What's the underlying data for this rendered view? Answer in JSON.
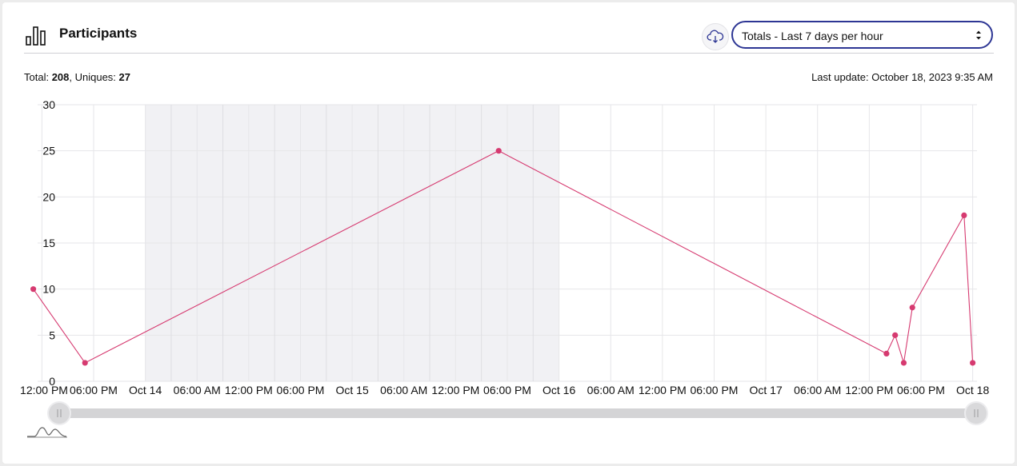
{
  "header": {
    "title": "Participants",
    "select_value": "Totals - Last 7 days per hour",
    "icons": {
      "title": "bar-chart-icon",
      "download": "cloud-download-icon"
    }
  },
  "summary": {
    "total_label": "Total: ",
    "total_value": "208",
    "uniques_label": ", Uniques: ",
    "uniques_value": "27"
  },
  "last_update": "Last update: October 18, 2023 9:35 AM",
  "colors": {
    "series": "#d63a70",
    "weekend_band": "#f1f1f4",
    "accent": "#2d3694",
    "grid": "#e6e6e9",
    "slider": "#d4d4d6"
  },
  "chart_data": {
    "type": "line",
    "x_axis": "time",
    "x_range": [
      "2023-10-13T11:30",
      "2023-10-18T00:30"
    ],
    "ylim": [
      0,
      30
    ],
    "yticks": [
      0,
      5,
      10,
      15,
      20,
      25,
      30
    ],
    "xticks": [
      {
        "t": "2023-10-13T12:00",
        "label": "12:00 PM"
      },
      {
        "t": "2023-10-13T18:00",
        "label": "06:00 PM"
      },
      {
        "t": "2023-10-14T00:00",
        "label": "Oct 14"
      },
      {
        "t": "2023-10-14T06:00",
        "label": "06:00 AM"
      },
      {
        "t": "2023-10-14T12:00",
        "label": "12:00 PM"
      },
      {
        "t": "2023-10-14T18:00",
        "label": "06:00 PM"
      },
      {
        "t": "2023-10-15T00:00",
        "label": "Oct 15"
      },
      {
        "t": "2023-10-15T06:00",
        "label": "06:00 AM"
      },
      {
        "t": "2023-10-15T12:00",
        "label": "12:00 PM"
      },
      {
        "t": "2023-10-15T18:00",
        "label": "06:00 PM"
      },
      {
        "t": "2023-10-16T00:00",
        "label": "Oct 16"
      },
      {
        "t": "2023-10-16T06:00",
        "label": "06:00 AM"
      },
      {
        "t": "2023-10-16T12:00",
        "label": "12:00 PM"
      },
      {
        "t": "2023-10-16T18:00",
        "label": "06:00 PM"
      },
      {
        "t": "2023-10-17T00:00",
        "label": "Oct 17"
      },
      {
        "t": "2023-10-17T06:00",
        "label": "06:00 AM"
      },
      {
        "t": "2023-10-17T12:00",
        "label": "12:00 PM"
      },
      {
        "t": "2023-10-17T18:00",
        "label": "06:00 PM"
      },
      {
        "t": "2023-10-18T00:00",
        "label": "Oct 18"
      }
    ],
    "minor_gridlines": [
      "2023-10-14T03:00",
      "2023-10-14T09:00",
      "2023-10-14T15:00",
      "2023-10-14T21:00",
      "2023-10-15T03:00",
      "2023-10-15T09:00",
      "2023-10-15T15:00",
      "2023-10-15T21:00"
    ],
    "weekend_band": [
      "2023-10-14T00:00",
      "2023-10-16T00:00"
    ],
    "series": [
      {
        "points": [
          {
            "t": "2023-10-13T11:00",
            "y": 10
          },
          {
            "t": "2023-10-13T17:00",
            "y": 2
          },
          {
            "t": "2023-10-15T17:00",
            "y": 25
          },
          {
            "t": "2023-10-17T14:00",
            "y": 3
          },
          {
            "t": "2023-10-17T15:00",
            "y": 5
          },
          {
            "t": "2023-10-17T16:00",
            "y": 2
          },
          {
            "t": "2023-10-17T17:00",
            "y": 8
          },
          {
            "t": "2023-10-17T23:00",
            "y": 18
          },
          {
            "t": "2023-10-18T00:00",
            "y": 2
          }
        ]
      }
    ],
    "grid": true,
    "legend": "none"
  }
}
